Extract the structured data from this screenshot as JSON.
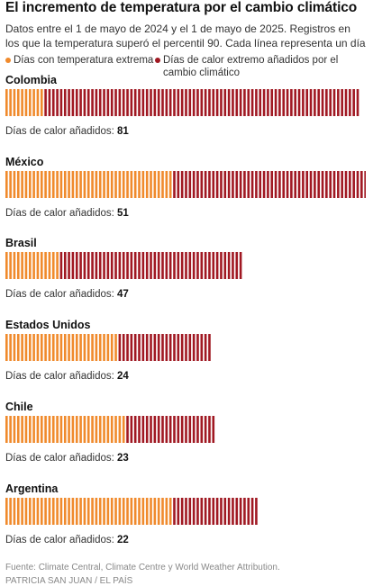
{
  "title": "El incremento de temperatura por el cambio climático",
  "subtitle": "Datos entre el 1 de mayo de 2024 y el 1 de mayo de 2025. Registros en los que la temperatura superó el percentil 90. Cada línea representa un día",
  "legend": {
    "extreme": "Días con temperatura extrema",
    "added": "Días de calor extremo añadidos por el cambio climático"
  },
  "colors": {
    "extreme": "#f08a2c",
    "added": "#a01822"
  },
  "added_label": "Días de calor añadidos:",
  "footer": {
    "source": "Fuente: Climate Central, Climate Centre y World Weather Attribution.",
    "credit": "PATRICIA SAN JUAN / EL PAÍS"
  },
  "chart_data": {
    "type": "bar",
    "orientation": "horizontal",
    "stacked": true,
    "categories": [
      "Colombia",
      "México",
      "Brasil",
      "Estados Unidos",
      "Chile",
      "Argentina"
    ],
    "series": [
      {
        "name": "Días con temperatura extrema",
        "values": [
          10,
          43,
          14,
          29,
          31,
          43
        ]
      },
      {
        "name": "Días de calor extremo añadidos por el cambio climático",
        "values": [
          81,
          51,
          47,
          24,
          23,
          22
        ]
      }
    ]
  }
}
